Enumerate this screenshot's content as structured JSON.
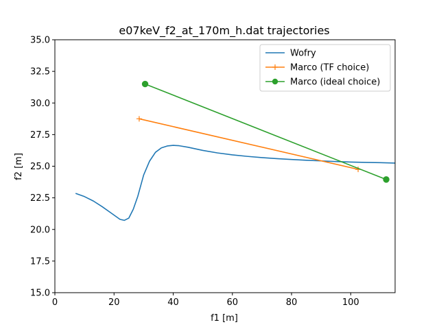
{
  "chart_data": {
    "type": "line",
    "title": "e07keV_f2_at_170m_h.dat trajectories",
    "xlabel": "f1 [m]",
    "ylabel": "f2 [m]",
    "xlim": [
      0,
      115
    ],
    "ylim": [
      15.0,
      35.0
    ],
    "x_ticks": [
      0,
      20,
      40,
      60,
      80,
      100
    ],
    "x_tick_labels": [
      "0",
      "20",
      "40",
      "60",
      "80",
      "100"
    ],
    "y_ticks": [
      15.0,
      17.5,
      20.0,
      22.5,
      25.0,
      27.5,
      30.0,
      32.5,
      35.0
    ],
    "y_tick_labels": [
      "15.0",
      "17.5",
      "20.0",
      "22.5",
      "25.0",
      "27.5",
      "30.0",
      "32.5",
      "35.0"
    ],
    "grid": false,
    "legend_position": "top-right",
    "series": [
      {
        "name": "Wofry",
        "color": "#1f77b4",
        "marker": "none",
        "x": [
          7,
          10,
          13,
          16,
          19,
          22,
          23.5,
          25,
          26.5,
          28,
          30,
          32,
          34,
          36,
          38,
          40,
          42,
          45,
          50,
          55,
          60,
          65,
          70,
          75,
          80,
          85,
          90,
          95,
          100,
          105,
          110,
          115
        ],
        "y": [
          22.85,
          22.6,
          22.25,
          21.8,
          21.3,
          20.8,
          20.72,
          20.9,
          21.6,
          22.6,
          24.3,
          25.4,
          26.1,
          26.45,
          26.6,
          26.65,
          26.62,
          26.5,
          26.25,
          26.05,
          25.9,
          25.78,
          25.68,
          25.6,
          25.53,
          25.47,
          25.42,
          25.37,
          25.33,
          25.3,
          25.28,
          25.25
        ]
      },
      {
        "name": "Marco (TF choice)",
        "color": "#ff7f0e",
        "marker": "plus",
        "x": [
          28.5,
          102.5
        ],
        "y": [
          28.75,
          24.75
        ]
      },
      {
        "name": "Marco (ideal choice)",
        "color": "#2ca02c",
        "marker": "circle",
        "x": [
          30.5,
          112.0
        ],
        "y": [
          31.5,
          23.95
        ]
      }
    ]
  }
}
